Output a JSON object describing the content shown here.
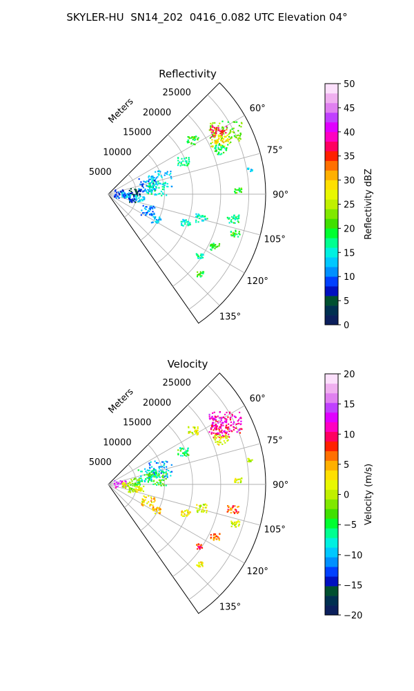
{
  "title": "SKYLER-HU  SN14_202  0416_0.082 UTC Elevation 04°",
  "chart_data": [
    {
      "type": "polar-sector",
      "title": "Reflectivity",
      "range_label": "Meters",
      "range_ticks": [
        5000,
        10000,
        15000,
        20000,
        25000
      ],
      "range_tick_labels": [
        "5000",
        "10000",
        "15000",
        "20000",
        "25000"
      ],
      "theta_ticks": [
        60,
        75,
        90,
        105,
        120,
        135
      ],
      "theta_tick_labels": [
        "60°",
        "75°",
        "90°",
        "105°",
        "120°",
        "135°"
      ],
      "theta_range": [
        45,
        145
      ],
      "r_max": 28000,
      "grid": true,
      "colorbar": {
        "label": "Reflectivity dBZ",
        "min": 0,
        "max": 50,
        "ticks": [
          0,
          5,
          10,
          15,
          20,
          25,
          30,
          35,
          40,
          45,
          50
        ],
        "tick_labels": [
          "0",
          "5",
          "10",
          "15",
          "20",
          "25",
          "30",
          "35",
          "40",
          "45",
          "50"
        ],
        "palette": [
          "#0b1f5c",
          "#003050",
          "#005030",
          "#0010c0",
          "#0040ff",
          "#0090ff",
          "#00c8ff",
          "#00f0e0",
          "#00ff90",
          "#00ff30",
          "#40e000",
          "#80e800",
          "#c0f000",
          "#e8f800",
          "#ffe000",
          "#ffb000",
          "#ff7000",
          "#ff2000",
          "#ff0060",
          "#ff00c0",
          "#e000ff",
          "#c040ff",
          "#e080f0",
          "#f0b0f0",
          "#fce0fc"
        ]
      },
      "echoes": [
        {
          "az": 62,
          "r": 23500,
          "value": 22,
          "size": 14
        },
        {
          "az": 60,
          "r": 22500,
          "value": 36,
          "size": 7
        },
        {
          "az": 64,
          "r": 22000,
          "value": 28,
          "size": 8
        },
        {
          "az": 68,
          "r": 21500,
          "value": 18,
          "size": 6
        },
        {
          "az": 57,
          "r": 17800,
          "value": 20,
          "size": 5
        },
        {
          "az": 66,
          "r": 14500,
          "value": 17,
          "size": 5
        },
        {
          "az": 73,
          "r": 9500,
          "value": 13,
          "size": 10
        },
        {
          "az": 76,
          "r": 7000,
          "value": 10,
          "size": 8
        },
        {
          "az": 82,
          "r": 8500,
          "value": 16,
          "size": 9
        },
        {
          "az": 84,
          "r": 4500,
          "value": 5,
          "size": 5
        },
        {
          "az": 86,
          "r": 2000,
          "value": 9,
          "size": 5
        },
        {
          "az": 92,
          "r": 3000,
          "value": 12,
          "size": 4
        },
        {
          "az": 97,
          "r": 5500,
          "value": 13,
          "size": 4
        },
        {
          "az": 103,
          "r": 4200,
          "value": 8,
          "size": 3
        },
        {
          "az": 112,
          "r": 7500,
          "value": 11,
          "size": 6
        },
        {
          "az": 118,
          "r": 9500,
          "value": 13,
          "size": 4
        },
        {
          "az": 104,
          "r": 17000,
          "value": 16,
          "size": 5
        },
        {
          "az": 110,
          "r": 14500,
          "value": 15,
          "size": 4
        },
        {
          "az": 101,
          "r": 22500,
          "value": 18,
          "size": 5
        },
        {
          "az": 107,
          "r": 23500,
          "value": 20,
          "size": 4
        },
        {
          "az": 116,
          "r": 21000,
          "value": 19,
          "size": 4
        },
        {
          "az": 124,
          "r": 19500,
          "value": 17,
          "size": 3
        },
        {
          "az": 131,
          "r": 21500,
          "value": 20,
          "size": 3
        },
        {
          "az": 88,
          "r": 23000,
          "value": 20,
          "size": 3
        },
        {
          "az": 80,
          "r": 25500,
          "value": 14,
          "size": 2
        }
      ]
    },
    {
      "type": "polar-sector",
      "title": "Velocity",
      "range_label": "Meters",
      "range_ticks": [
        5000,
        10000,
        15000,
        20000,
        25000
      ],
      "range_tick_labels": [
        "5000",
        "10000",
        "15000",
        "20000",
        "25000"
      ],
      "theta_ticks": [
        60,
        75,
        90,
        105,
        120,
        135
      ],
      "theta_tick_labels": [
        "60°",
        "75°",
        "90°",
        "105°",
        "120°",
        "135°"
      ],
      "theta_range": [
        45,
        145
      ],
      "r_max": 28000,
      "grid": true,
      "colorbar": {
        "label": "Velocity (m/s)",
        "min": -20,
        "max": 20,
        "ticks": [
          -20,
          -15,
          -10,
          -5,
          0,
          5,
          10,
          15,
          20
        ],
        "tick_labels": [
          "−20",
          "−15",
          "−10",
          "−5",
          "0",
          "5",
          "10",
          "15",
          "20"
        ],
        "palette": [
          "#0b1f5c",
          "#003050",
          "#005030",
          "#0010c0",
          "#0040ff",
          "#0090ff",
          "#00c8ff",
          "#00f0e0",
          "#00ff90",
          "#00ff30",
          "#40e000",
          "#80e800",
          "#c0f000",
          "#e8f800",
          "#ffe000",
          "#ffb000",
          "#ff7000",
          "#ff2000",
          "#ff0060",
          "#ff00c0",
          "#e000ff",
          "#c040ff",
          "#e080f0",
          "#f0b0f0",
          "#fce0fc"
        ]
      },
      "echoes": [
        {
          "az": 62,
          "r": 23500,
          "value": 11,
          "size": 14
        },
        {
          "az": 60,
          "r": 22500,
          "value": 12,
          "size": 7
        },
        {
          "az": 64,
          "r": 22000,
          "value": 10,
          "size": 8
        },
        {
          "az": 68,
          "r": 21500,
          "value": 2,
          "size": 6
        },
        {
          "az": 57,
          "r": 17800,
          "value": 1,
          "size": 5
        },
        {
          "az": 66,
          "r": 14500,
          "value": -5,
          "size": 5
        },
        {
          "az": 73,
          "r": 9500,
          "value": -10,
          "size": 10
        },
        {
          "az": 76,
          "r": 7000,
          "value": -7,
          "size": 8
        },
        {
          "az": 82,
          "r": 8500,
          "value": -4,
          "size": 9
        },
        {
          "az": 84,
          "r": 4500,
          "value": -3,
          "size": 5
        },
        {
          "az": 86,
          "r": 2000,
          "value": 14,
          "size": 5
        },
        {
          "az": 92,
          "r": 3000,
          "value": 1,
          "size": 4
        },
        {
          "az": 97,
          "r": 5500,
          "value": 2,
          "size": 4
        },
        {
          "az": 103,
          "r": 4200,
          "value": 0,
          "size": 3
        },
        {
          "az": 112,
          "r": 7500,
          "value": 3,
          "size": 6
        },
        {
          "az": 118,
          "r": 9500,
          "value": 4,
          "size": 4
        },
        {
          "az": 104,
          "r": 17000,
          "value": 1,
          "size": 5
        },
        {
          "az": 110,
          "r": 14500,
          "value": 2,
          "size": 4
        },
        {
          "az": 101,
          "r": 22500,
          "value": 7,
          "size": 5
        },
        {
          "az": 107,
          "r": 23500,
          "value": 1,
          "size": 4
        },
        {
          "az": 116,
          "r": 21000,
          "value": 6,
          "size": 4
        },
        {
          "az": 124,
          "r": 19500,
          "value": 9,
          "size": 3
        },
        {
          "az": 131,
          "r": 21500,
          "value": 2,
          "size": 3
        },
        {
          "az": 88,
          "r": 23000,
          "value": 1,
          "size": 3
        },
        {
          "az": 80,
          "r": 25500,
          "value": 0,
          "size": 2
        }
      ]
    }
  ]
}
